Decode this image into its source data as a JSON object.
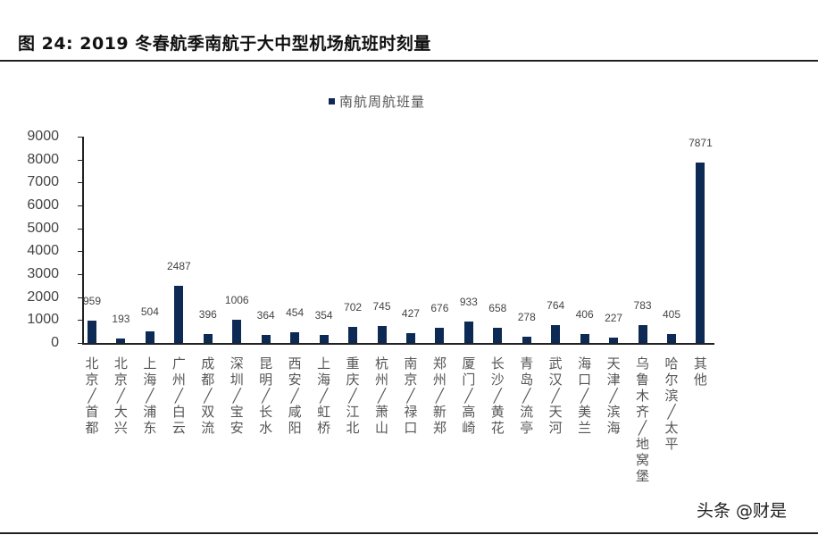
{
  "header": {
    "title": "图 24:  2019 冬春航季南航于大中型机场航班时刻量"
  },
  "watermark": "头条 @财是",
  "chart_data": {
    "type": "bar",
    "title": "2019 冬春航季南航于大中型机场航班时刻量",
    "xlabel": "",
    "ylabel": "",
    "ylim": [
      0,
      9000
    ],
    "yticks": [
      0,
      1000,
      2000,
      3000,
      4000,
      5000,
      6000,
      7000,
      8000,
      9000
    ],
    "grid": false,
    "legend": {
      "position": "top-center",
      "entries": [
        "南航周航班量"
      ]
    },
    "bar_color": "#0d2a55",
    "categories": [
      "北京/首都",
      "北京/大兴",
      "上海/浦东",
      "广州/白云",
      "成都/双流",
      "深圳/宝安",
      "昆明/长水",
      "西安/咸阳",
      "上海/虹桥",
      "重庆/江北",
      "杭州/萧山",
      "南京/禄口",
      "郑州/新郑",
      "厦门/高崎",
      "长沙/黄花",
      "青岛/流亭",
      "武汉/天河",
      "海口/美兰",
      "天津/滨海",
      "乌鲁木齐/地窝堡",
      "哈尔滨/太平",
      "其他"
    ],
    "series": [
      {
        "name": "南航周航班量",
        "values": [
          959,
          193,
          504,
          2487,
          396,
          1006,
          364,
          454,
          354,
          702,
          745,
          427,
          676,
          933,
          658,
          278,
          764,
          406,
          227,
          783,
          405,
          7871
        ]
      }
    ]
  }
}
